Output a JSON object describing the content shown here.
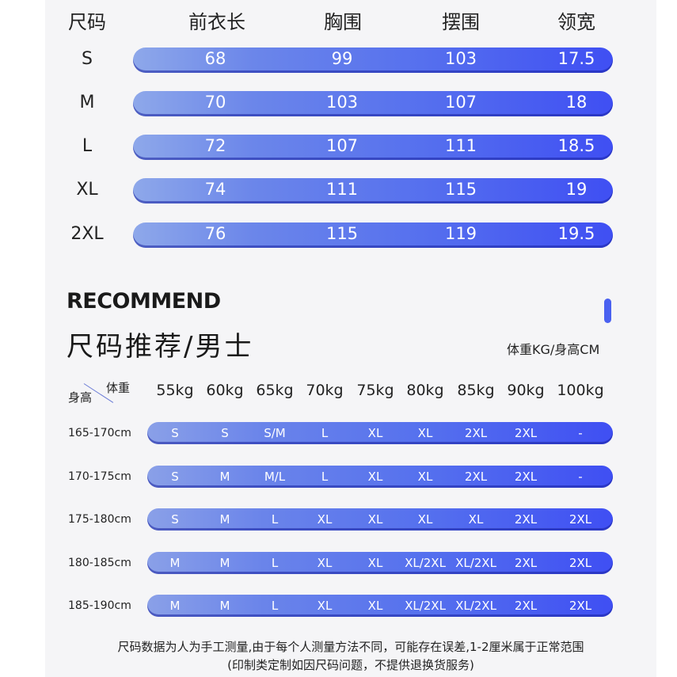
{
  "size_table": {
    "headers": [
      "尺码",
      "前衣长",
      "胸围",
      "摆围",
      "领宽"
    ],
    "rows": [
      {
        "size": "S",
        "values": [
          "68",
          "99",
          "103",
          "17.5"
        ]
      },
      {
        "size": "M",
        "values": [
          "70",
          "103",
          "107",
          "18"
        ]
      },
      {
        "size": "L",
        "values": [
          "72",
          "107",
          "111",
          "18.5"
        ]
      },
      {
        "size": "XL",
        "values": [
          "74",
          "111",
          "115",
          "19"
        ]
      },
      {
        "size": "2XL",
        "values": [
          "76",
          "115",
          "119",
          "19.5"
        ]
      }
    ]
  },
  "recommend": {
    "title": "RECOMMEND",
    "subtitle": "尺码推荐/男士",
    "unit_note": "体重KG/身高CM",
    "corner_height_label": "身高",
    "corner_weight_label": "体重",
    "weights": [
      "55kg",
      "60kg",
      "65kg",
      "70kg",
      "75kg",
      "80kg",
      "85kg",
      "90kg",
      "100kg"
    ],
    "rows": [
      {
        "height": "165-170cm",
        "values": [
          "S",
          "S",
          "S/M",
          "L",
          "XL",
          "XL",
          "2XL",
          "2XL",
          "-"
        ]
      },
      {
        "height": "170-175cm",
        "values": [
          "S",
          "M",
          "M/L",
          "L",
          "XL",
          "XL",
          "2XL",
          "2XL",
          "-"
        ]
      },
      {
        "height": "175-180cm",
        "values": [
          "S",
          "M",
          "L",
          "XL",
          "XL",
          "XL",
          "XL",
          "2XL",
          "2XL"
        ]
      },
      {
        "height": "180-185cm",
        "values": [
          "M",
          "M",
          "L",
          "XL",
          "XL",
          "XL/2XL",
          "XL/2XL",
          "2XL",
          "2XL"
        ]
      },
      {
        "height": "185-190cm",
        "values": [
          "M",
          "M",
          "L",
          "XL",
          "XL",
          "XL/2XL",
          "XL/2XL",
          "2XL",
          "2XL"
        ]
      }
    ]
  },
  "footer": {
    "line1": "尺码数据为人为手工测量,由于每个人测量方法不同，可能存在误差,1-2厘米属于正常范围",
    "line2": "(印制类定制如因尺码问题，不提供退换货服务)"
  },
  "colors": {
    "accent": "#4a61f0",
    "pill_start": "#8ea8ea",
    "pill_end": "#3f4ff3",
    "panel_background": "#f5f5f7"
  }
}
